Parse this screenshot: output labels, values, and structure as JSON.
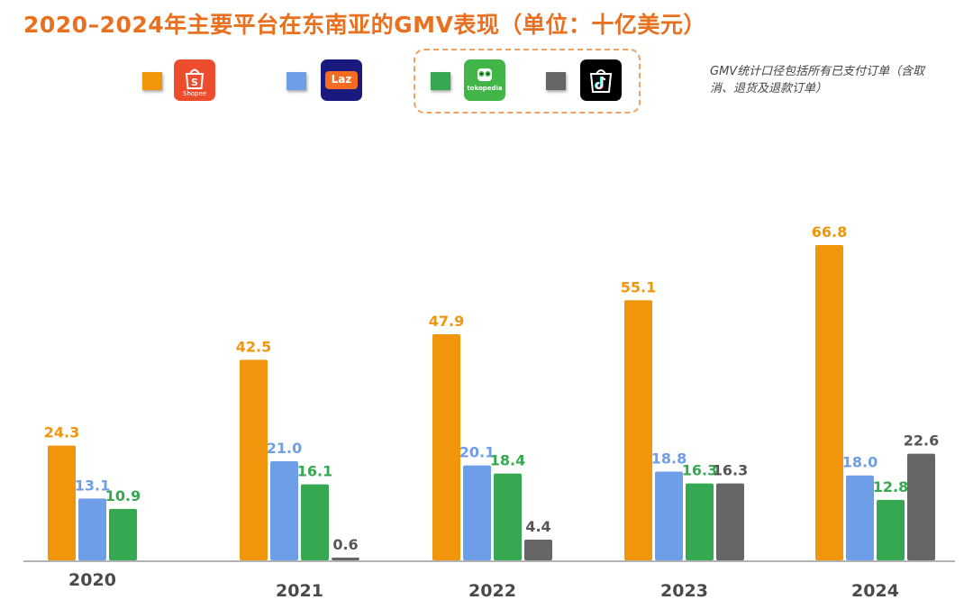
{
  "title": "2020–2024年主要平台在东南亚的GMV表现（单位：十亿美元）",
  "note": "GMV统计口径包括所有已支付订单（含取消、退货及退款订单）",
  "colors": {
    "title": "#e8701f",
    "shopee": "#f0950c",
    "lazada": "#6f9ee8",
    "tokopedia": "#36a852",
    "tiktok": "#666666"
  },
  "legend": [
    {
      "platform": "Shopee",
      "color": "#f0950c",
      "logo_text": "Shopee"
    },
    {
      "platform": "Lazada",
      "color": "#6f9ee8",
      "logo_text": "Laz"
    },
    {
      "platform": "Tokopedia",
      "color": "#36a852",
      "logo_text": "tokopedia"
    },
    {
      "platform": "TikTok Shop",
      "color": "#666666",
      "logo_text": ""
    }
  ],
  "chart_data": {
    "type": "bar",
    "categories": [
      "2020",
      "2021",
      "2022",
      "2023",
      "2024"
    ],
    "series": [
      {
        "values": [
          24.3,
          42.5,
          47.9,
          55.1,
          66.8
        ],
        "color": "#f0950c",
        "labels": [
          "24.3",
          "42.5",
          "47.9",
          "55.1",
          "66.8"
        ]
      },
      {
        "values": [
          13.1,
          21.0,
          20.1,
          18.8,
          18.0
        ],
        "color": "#6f9ee8",
        "labels": [
          "13.1",
          "21.0",
          "20.1",
          "18.8",
          "18.0"
        ]
      },
      {
        "values": [
          10.9,
          16.1,
          18.4,
          16.3,
          12.8
        ],
        "color": "#36a852",
        "labels": [
          "10.9",
          "16.1",
          "18.4",
          "16.3",
          "12.8"
        ]
      },
      {
        "values": [
          null,
          0.6,
          4.4,
          16.3,
          22.6
        ],
        "color": "#666666",
        "labels": [
          null,
          "0.6",
          "4.4",
          "16.3",
          "22.6"
        ]
      }
    ],
    "ylim": [
      0,
      70
    ],
    "grid": false,
    "legend_position": "top"
  }
}
